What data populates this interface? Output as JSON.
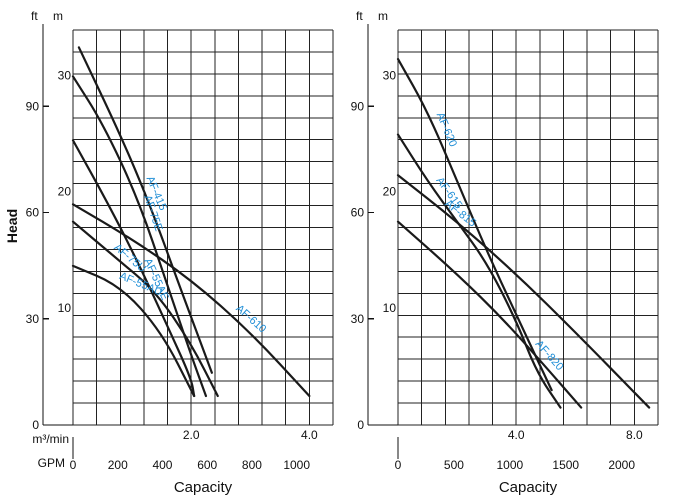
{
  "chart_data": [
    {
      "type": "line",
      "title": "",
      "panel": "left",
      "ylabel": "Head",
      "xlabel": "Capacity",
      "unit_ft": "ft",
      "unit_m": "m",
      "unit_m3": "m³/min",
      "unit_gpm": "GPM",
      "ylim_m": [
        0,
        34
      ],
      "xlim_m3": [
        0,
        4.4
      ],
      "m_ticks": [
        {
          "value": 10,
          "label": "10"
        },
        {
          "value": 20,
          "label": "20"
        },
        {
          "value": 30,
          "label": "30"
        }
      ],
      "ft_ticks": [
        {
          "value": 0,
          "label": "0"
        },
        {
          "value": 30,
          "label": "30"
        },
        {
          "value": 60,
          "label": "60"
        },
        {
          "value": 90,
          "label": "90"
        }
      ],
      "m3_ticks": [
        {
          "value": 2.0,
          "label": "2.0"
        },
        {
          "value": 4.0,
          "label": "4.0"
        }
      ],
      "gpm_ticks": [
        {
          "value": 0,
          "label": "0"
        },
        {
          "value": 200,
          "label": "200"
        },
        {
          "value": 400,
          "label": "400"
        },
        {
          "value": 600,
          "label": "600"
        },
        {
          "value": 800,
          "label": "800"
        },
        {
          "value": 1000,
          "label": "1000"
        }
      ],
      "series": [
        {
          "name": "AF-415",
          "points": [
            [
              0.1,
              32.5
            ],
            [
              0.8,
              25
            ],
            [
              1.3,
              19
            ],
            [
              1.8,
              12
            ],
            [
              2.35,
              4.5
            ]
          ]
        },
        {
          "name": "AF-75E",
          "points": [
            [
              0,
              30
            ],
            [
              0.5,
              26
            ],
            [
              1.1,
              19.5
            ],
            [
              1.6,
              12
            ],
            [
              2.0,
              6
            ],
            [
              2.25,
              2.5
            ]
          ]
        },
        {
          "name": "AF-55AE",
          "points": [
            [
              0,
              24.5
            ],
            [
              0.6,
              19
            ],
            [
              1.1,
              14
            ],
            [
              1.6,
              8.5
            ],
            [
              2.0,
              4
            ],
            [
              2.05,
              2.5
            ]
          ]
        },
        {
          "name": "AF-75U",
          "points": [
            [
              0,
              17.5
            ],
            [
              0.7,
              14.5
            ],
            [
              1.4,
              11.5
            ],
            [
              2.0,
              7
            ],
            [
              2.45,
              2.5
            ]
          ]
        },
        {
          "name": "AF-55AU",
          "points": [
            [
              0,
              13.7
            ],
            [
              0.8,
              12
            ],
            [
              1.5,
              8
            ],
            [
              2.05,
              2.5
            ]
          ]
        },
        {
          "name": "AF-610",
          "points": [
            [
              0,
              19
            ],
            [
              1.0,
              16
            ],
            [
              2.0,
              12.5
            ],
            [
              3.0,
              8
            ],
            [
              4.0,
              2.5
            ]
          ]
        }
      ]
    },
    {
      "type": "line",
      "title": "",
      "panel": "right",
      "xlabel": "Capacity",
      "unit_ft": "ft",
      "unit_m": "m",
      "ylim_m": [
        0,
        34
      ],
      "xlim_m3": [
        0,
        8.8
      ],
      "m_ticks": [
        {
          "value": 10,
          "label": "10"
        },
        {
          "value": 20,
          "label": "20"
        },
        {
          "value": 30,
          "label": "30"
        }
      ],
      "ft_ticks": [
        {
          "value": 0,
          "label": "0"
        },
        {
          "value": 30,
          "label": "30"
        },
        {
          "value": 60,
          "label": "60"
        },
        {
          "value": 90,
          "label": "90"
        }
      ],
      "m3_ticks": [
        {
          "value": 4.0,
          "label": "4.0"
        },
        {
          "value": 8.0,
          "label": "8.0"
        }
      ],
      "gpm_ticks": [
        {
          "value": 0,
          "label": "0"
        },
        {
          "value": 500,
          "label": "500"
        },
        {
          "value": 1000,
          "label": "1000"
        },
        {
          "value": 1500,
          "label": "1500"
        },
        {
          "value": 2000,
          "label": "2000"
        }
      ],
      "series": [
        {
          "name": "AF-620",
          "points": [
            [
              0,
              31.5
            ],
            [
              1.0,
              27
            ],
            [
              2.0,
              21
            ],
            [
              3.0,
              15
            ],
            [
              4.0,
              9.5
            ],
            [
              5.2,
              3
            ]
          ]
        },
        {
          "name": "AF-615",
          "points": [
            [
              0,
              25
            ],
            [
              1.0,
              21
            ],
            [
              2.0,
              17.5
            ],
            [
              3.0,
              14
            ],
            [
              4.0,
              9
            ],
            [
              4.7,
              4.5
            ],
            [
              5.5,
              1.5
            ]
          ]
        },
        {
          "name": "AF-815",
          "points": [
            [
              0,
              21.5
            ],
            [
              2.0,
              17.5
            ],
            [
              4.0,
              13
            ],
            [
              6.0,
              8
            ],
            [
              8.5,
              1.5
            ]
          ]
        },
        {
          "name": "AF-820",
          "points": [
            [
              0,
              17.5
            ],
            [
              2.0,
              13
            ],
            [
              3.6,
              9
            ],
            [
              5.0,
              5
            ],
            [
              6.2,
              1.5
            ]
          ]
        }
      ]
    }
  ]
}
